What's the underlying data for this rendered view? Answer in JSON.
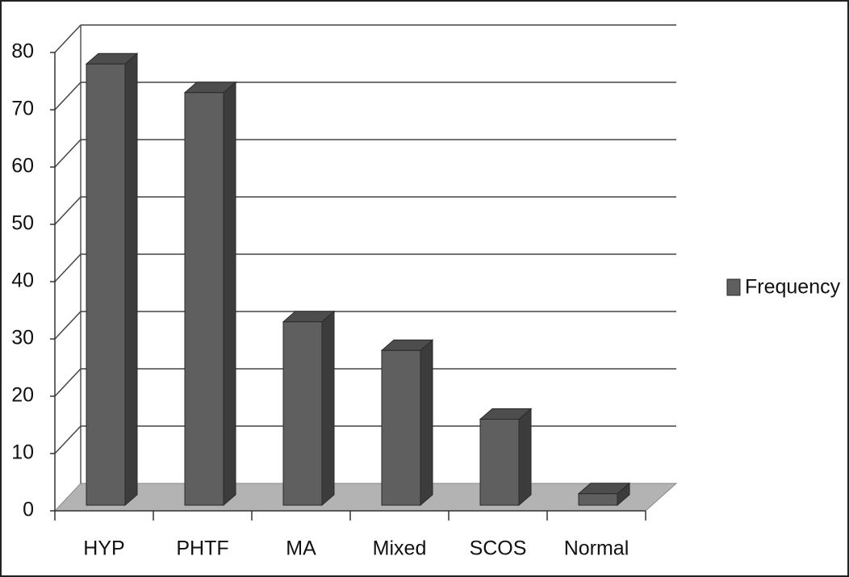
{
  "chart_data": {
    "type": "bar",
    "categories": [
      "HYP",
      "PHTF",
      "MA",
      "Mixed",
      "SCOS",
      "Normal"
    ],
    "series": [
      {
        "name": "Frequency",
        "color": "#5f5f5f",
        "values": [
          77,
          72,
          32,
          27,
          15,
          2
        ]
      }
    ],
    "ylim": [
      0,
      80
    ],
    "yticks": [
      0,
      10,
      20,
      30,
      40,
      50,
      60,
      70,
      80
    ],
    "grid": true,
    "legend": "right"
  }
}
